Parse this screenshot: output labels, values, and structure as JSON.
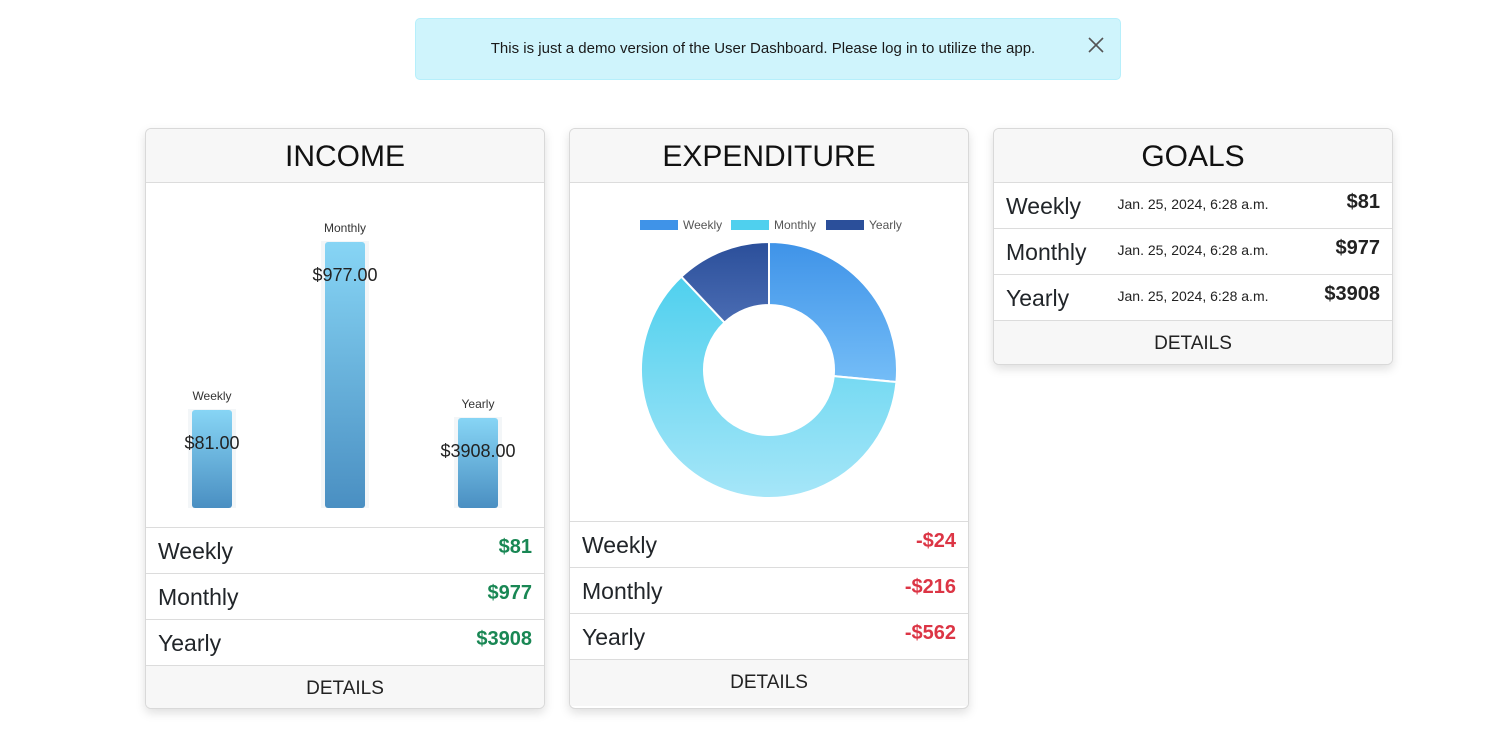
{
  "alert": {
    "message": "This is just a demo version of the User Dashboard. Please log in to utilize the app.",
    "close_icon": "close-icon"
  },
  "income": {
    "title": "INCOME",
    "rows": [
      {
        "label": "Weekly",
        "value": "$81"
      },
      {
        "label": "Monthly",
        "value": "$977"
      },
      {
        "label": "Yearly",
        "value": "$3908"
      }
    ],
    "details_label": "DETAILS",
    "value_color": "#198754"
  },
  "expenditure": {
    "title": "EXPENDITURE",
    "rows": [
      {
        "label": "Weekly",
        "value": "-$24"
      },
      {
        "label": "Monthly",
        "value": "-$216"
      },
      {
        "label": "Yearly",
        "value": "-$562"
      }
    ],
    "details_label": "DETAILS",
    "value_color": "#dc3545"
  },
  "goals": {
    "title": "GOALS",
    "rows": [
      {
        "label": "Weekly",
        "date": "Jan. 25, 2024, 6:28 a.m.",
        "value": "$81"
      },
      {
        "label": "Monthly",
        "date": "Jan. 25, 2024, 6:28 a.m.",
        "value": "$977"
      },
      {
        "label": "Yearly",
        "date": "Jan. 25, 2024, 6:28 a.m.",
        "value": "$3908"
      }
    ],
    "details_label": "DETAILS"
  },
  "chart_data": [
    {
      "type": "bar",
      "categories": [
        "Weekly",
        "Monthly",
        "Yearly"
      ],
      "values": [
        81,
        977,
        3908
      ],
      "data_labels": [
        "$81.00",
        "$977.00",
        "$3908.00"
      ],
      "title": "",
      "xlabel": "",
      "ylabel": "",
      "note_scale": "bars drawn with independent heights, no axes shown",
      "grid": false,
      "colors": [
        "#87d5f5",
        "#4a8fc2"
      ]
    },
    {
      "type": "pie",
      "categories": [
        "Weekly",
        "Monthly",
        "Yearly"
      ],
      "values": [
        24,
        216,
        562
      ],
      "legend": [
        "Weekly",
        "Monthly",
        "Yearly"
      ],
      "legend_position": "top",
      "colors": [
        "#3f93e8",
        "#4fd0ee",
        "#2b4f9a"
      ],
      "title": ""
    }
  ]
}
